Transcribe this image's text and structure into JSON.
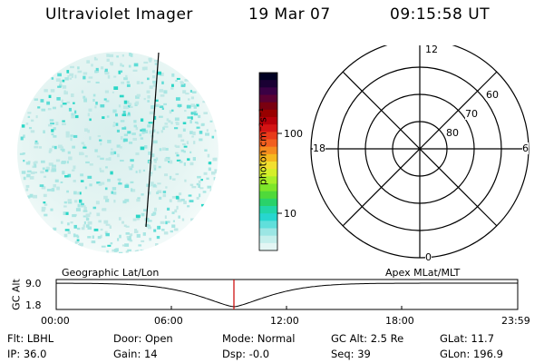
{
  "header": {
    "instrument": "Ultraviolet Imager",
    "date": "19 Mar 07",
    "time": "09:15:58 UT"
  },
  "colorbar": {
    "unit_label": "photon cm⁻²s⁻¹",
    "ticks": [
      "100",
      "10"
    ],
    "colors": [
      "#000022",
      "#1a0033",
      "#3a0044",
      "#5a0033",
      "#7a0010",
      "#990000",
      "#b8000a",
      "#d41414",
      "#e83a1a",
      "#f25f1f",
      "#f58c1f",
      "#f5b81f",
      "#f2df30",
      "#d5ef2a",
      "#a8ef2a",
      "#7ee62a",
      "#4fd93a",
      "#2ad26a",
      "#22d6a8",
      "#27d6cf",
      "#60dfdb",
      "#9be6e4",
      "#c4efec",
      "#e3f6f4"
    ]
  },
  "polar_plot": {
    "mlt_labels": [
      "12",
      "18",
      "6",
      "0"
    ],
    "lat_labels": [
      "60",
      "70",
      "80"
    ]
  },
  "timeline": {
    "left_label": "Geographic Lat/Lon",
    "right_label": "Apex MLat/MLT",
    "y_axis_label": "GC Alt",
    "y_ticks": [
      "9.0",
      "1.8"
    ],
    "x_ticks": [
      "00:00",
      "06:00",
      "12:00",
      "18:00",
      "23:59"
    ]
  },
  "info": {
    "filter": "Flt: LBHL",
    "ip": "IP: 36.0",
    "door": "Door: Open",
    "gain": "Gain: 14",
    "mode": "Mode: Normal",
    "dsp": "Dsp:    -0.0",
    "gc_alt": "GC Alt: 2.5 Re",
    "seq": "Seq: 39",
    "glat": "GLat:   11.7",
    "glon": "GLon: 196.9"
  }
}
